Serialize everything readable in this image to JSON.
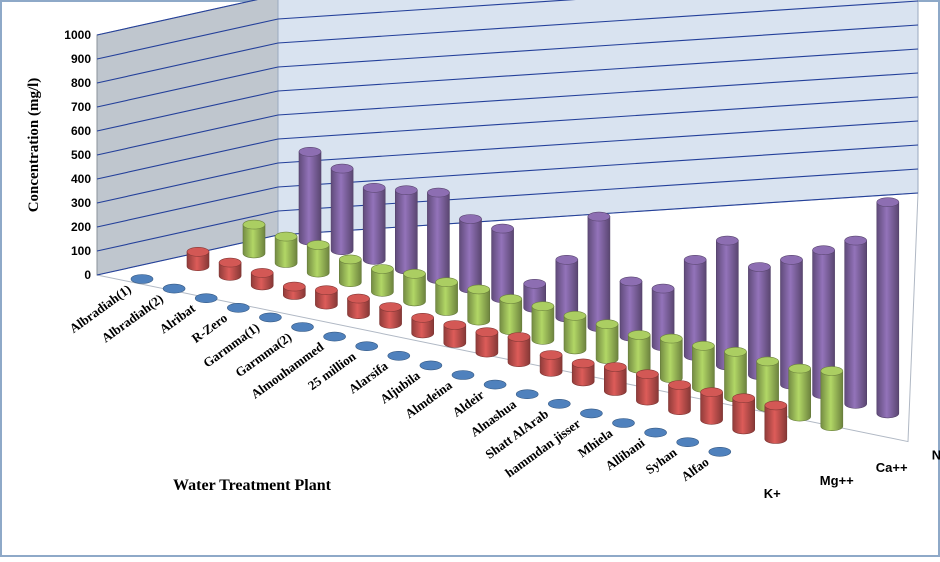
{
  "chart_data": {
    "type": "bar",
    "subtype": "3d-column",
    "ylabel": "Concentration (mg/l)",
    "xlabel": "Water Treatment Plant",
    "ylim": [
      0,
      1000
    ],
    "y_ticks": [
      "0",
      "100",
      "200",
      "300",
      "400",
      "500",
      "600",
      "700",
      "800",
      "900",
      "1000"
    ],
    "categories": [
      "Albradiah(1)",
      "Albradiah(2)",
      "Alribat",
      "R-Zero",
      "Garmma(1)",
      "Garmma(2)",
      "Almouhammed",
      "25 million",
      "Alarsifa",
      "Aljubila",
      "Almdeina",
      "Aldeir",
      "Alnashua",
      "Shatt AlArab",
      "hammdan jisser",
      "Mhiela",
      "Allibani",
      "Syhan",
      "Alfao"
    ],
    "series": [
      {
        "name": "K+",
        "color": "#4F81BD",
        "values": [
          4,
          4,
          4,
          4,
          4,
          4,
          4,
          4,
          4,
          4,
          4,
          4,
          4,
          4,
          4,
          4,
          4,
          4,
          4
        ]
      },
      {
        "name": "Mg++",
        "color": "#C0504D",
        "values": [
          60,
          55,
          52,
          35,
          60,
          65,
          70,
          65,
          75,
          85,
          105,
          70,
          75,
          100,
          110,
          105,
          115,
          130,
          140
        ]
      },
      {
        "name": "Ca++",
        "color": "#9BBB59",
        "values": [
          120,
          110,
          115,
          95,
          95,
          115,
          120,
          130,
          130,
          140,
          140,
          145,
          140,
          165,
          175,
          190,
          190,
          200,
          230
        ]
      },
      {
        "name": "Na+",
        "color": "#8064A2",
        "values": [
          370,
          340,
          300,
          330,
          360,
          290,
          290,
          100,
          240,
          460,
          230,
          240,
          400,
          520,
          450,
          520,
          600,
          680,
          880
        ]
      }
    ]
  },
  "legend_labels": [
    "K+",
    "Mg++",
    "Ca++",
    "Na+"
  ],
  "style": {
    "wall": "#D9E3F0",
    "side_wall": "#BFC6CE",
    "grid": "#24409A"
  }
}
